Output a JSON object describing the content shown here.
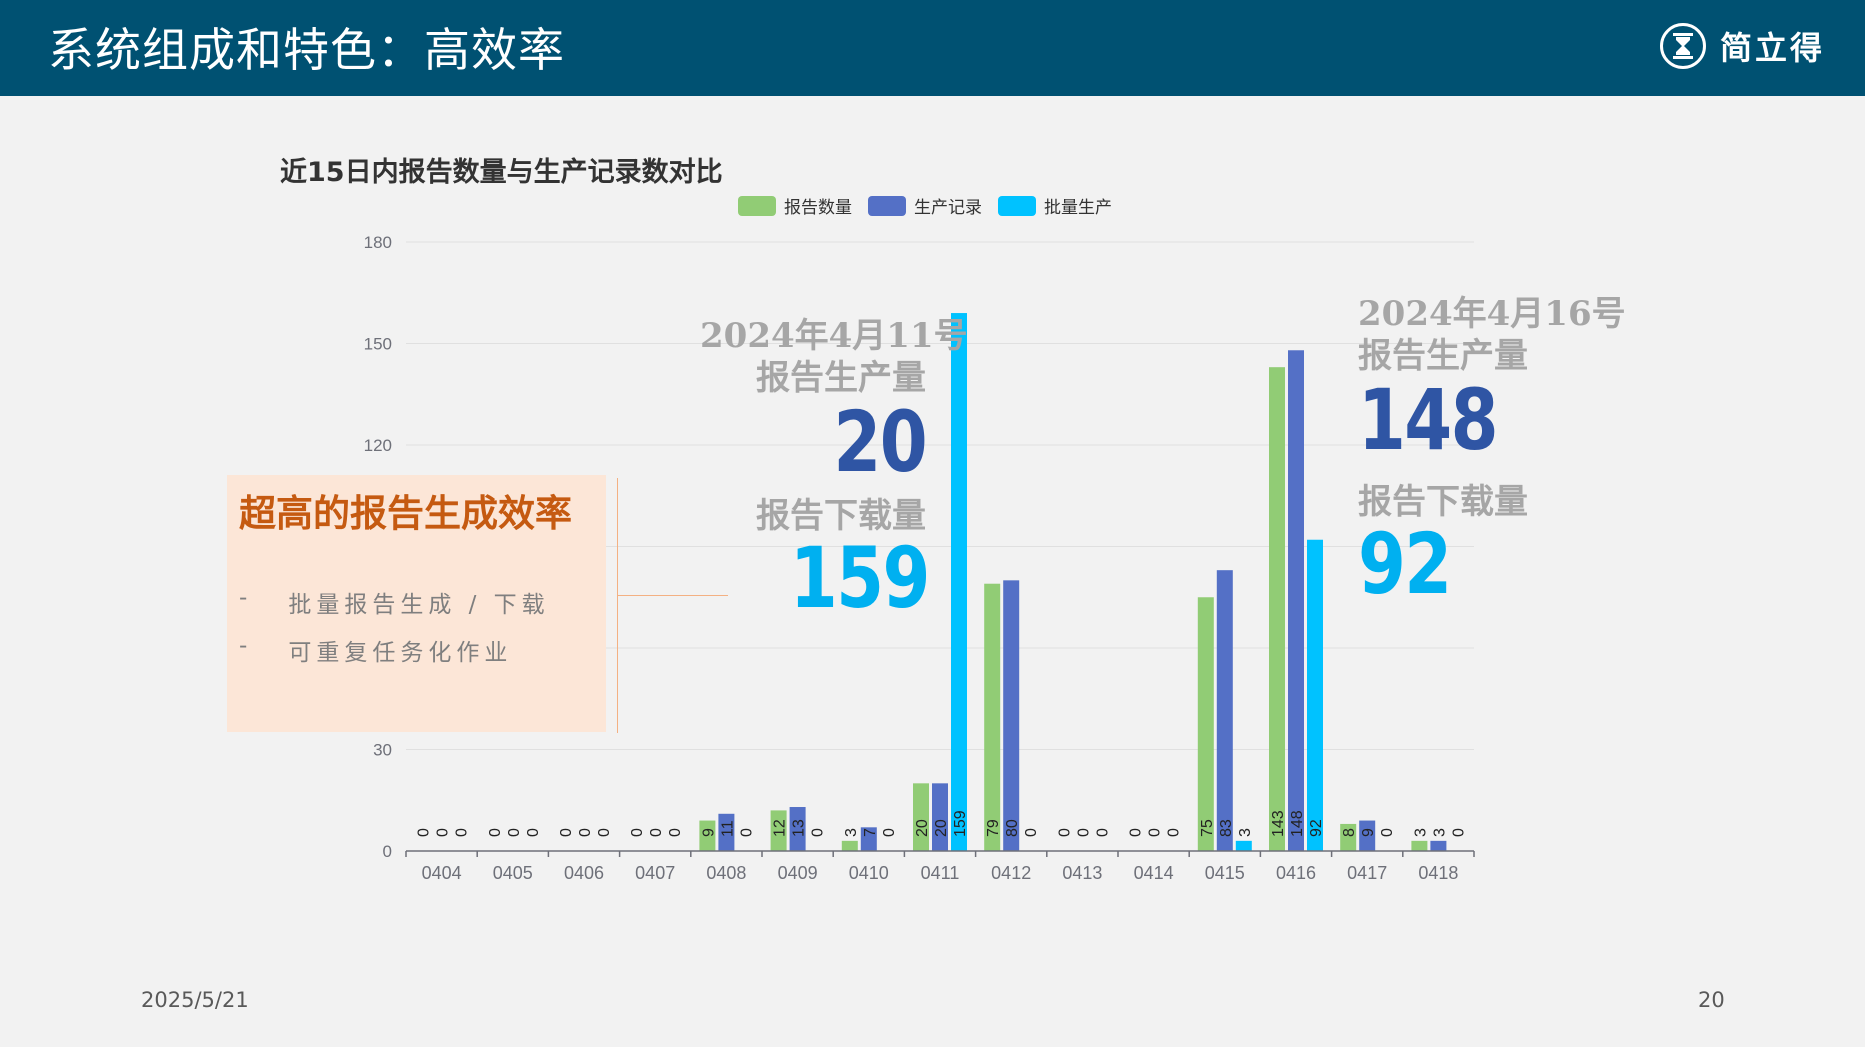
{
  "header": {
    "title": "系统组成和特色：高效率",
    "logo_text": "简立得"
  },
  "chart_data": {
    "type": "bar",
    "title": "近15日内报告数量与生产记录数对比",
    "categories": [
      "0404",
      "0405",
      "0406",
      "0407",
      "0408",
      "0409",
      "0410",
      "0411",
      "0412",
      "0413",
      "0414",
      "0415",
      "0416",
      "0417",
      "0418"
    ],
    "series": [
      {
        "name": "报告数量",
        "color": "#91cc75",
        "values": [
          0,
          0,
          0,
          0,
          9,
          12,
          3,
          20,
          79,
          0,
          0,
          75,
          143,
          8,
          3
        ]
      },
      {
        "name": "生产记录",
        "color": "#5470c6",
        "values": [
          0,
          0,
          0,
          0,
          11,
          13,
          7,
          20,
          80,
          0,
          0,
          83,
          148,
          9,
          3
        ]
      },
      {
        "name": "批量生产",
        "color": "#00c2ff",
        "values": [
          0,
          0,
          0,
          0,
          0,
          0,
          0,
          159,
          0,
          0,
          0,
          3,
          92,
          0,
          0
        ]
      }
    ],
    "yticks": [
      "0",
      "30",
      "",
      "",
      "120",
      "150",
      "180"
    ],
    "ylim": [
      0,
      180
    ],
    "grid": true,
    "legend": "top-center"
  },
  "callout": {
    "heading": "超高的报告生成效率",
    "items": [
      {
        "bullet": "-",
        "text": "批量报告生成 / 下载"
      },
      {
        "bullet": "-",
        "text": "可重复任务化作业"
      }
    ]
  },
  "annotation_0411": {
    "date": "2024年4月11号",
    "produce_label": "报告生产量",
    "produce_value": "20",
    "download_label": "报告下载量",
    "download_value": "159"
  },
  "annotation_0416": {
    "date": "2024年4月16号",
    "produce_label": "报告生产量",
    "produce_value": "148",
    "download_label": "报告下载量",
    "download_value": "92"
  },
  "footer": {
    "date": "2025/5/21",
    "page": "20"
  },
  "colors": {
    "header_bg": "#005172",
    "produce_blue": "#2f55a4",
    "download_cyan": "#00b0f0",
    "callout_orange": "#c55a11"
  }
}
